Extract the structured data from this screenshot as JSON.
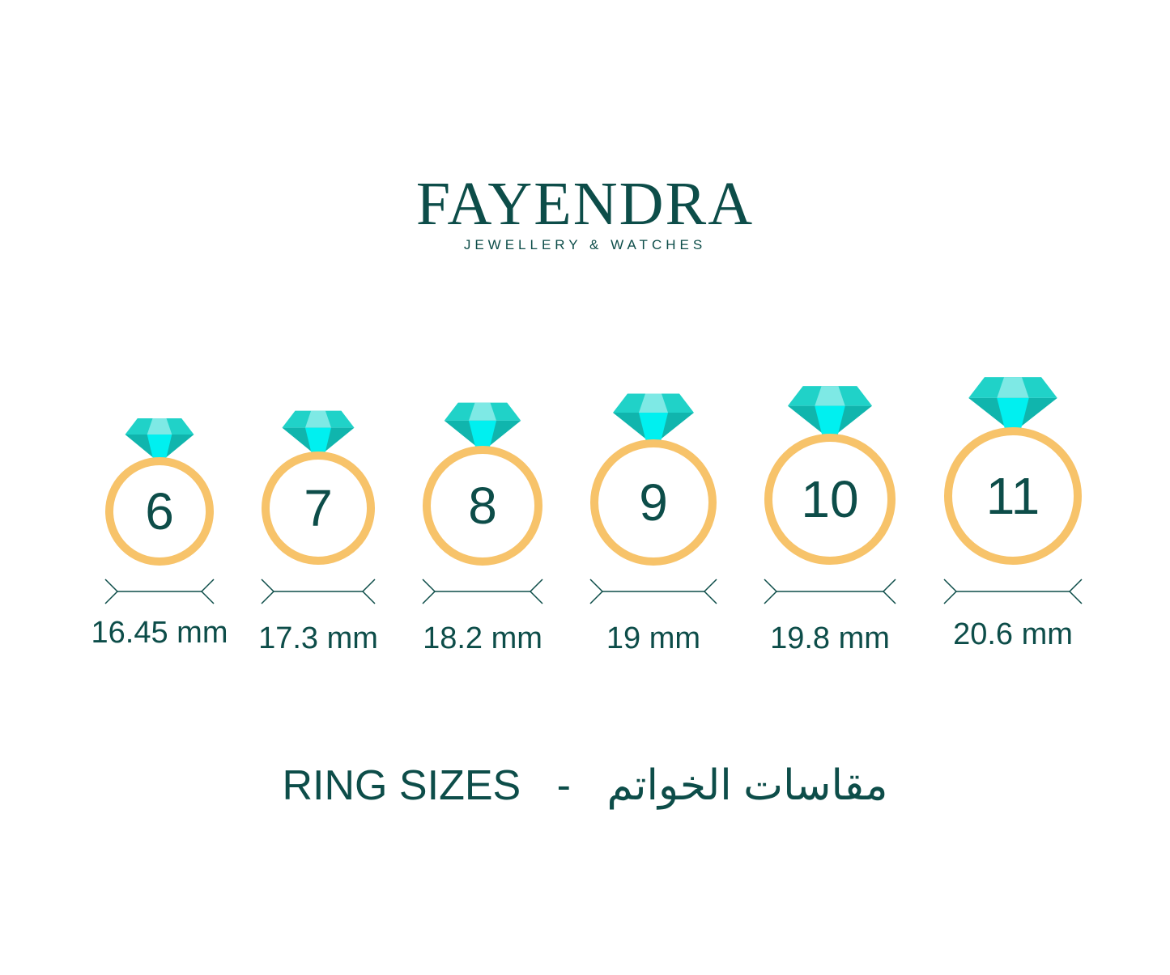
{
  "brand": {
    "name": "FAYENDRA",
    "tagline": "JEWELLERY & WATCHES"
  },
  "rings": [
    {
      "size": "6",
      "diameter": "16.45 mm"
    },
    {
      "size": "7",
      "diameter": "17.3 mm"
    },
    {
      "size": "8",
      "diameter": "18.2 mm"
    },
    {
      "size": "9",
      "diameter": "19 mm"
    },
    {
      "size": "10",
      "diameter": "19.8 mm"
    },
    {
      "size": "11",
      "diameter": "20.6 mm"
    }
  ],
  "footer": {
    "title_en": "RING SIZES",
    "separator": "-",
    "title_ar": "مقاسات الخواتم"
  },
  "colors": {
    "text": "#0d4d49",
    "ring": "#f7c36a",
    "gem_light": "#7ee9e5",
    "gem_mid": "#20d2c8",
    "gem_dark": "#10b5ad",
    "gem_bright": "#00f0f0"
  }
}
